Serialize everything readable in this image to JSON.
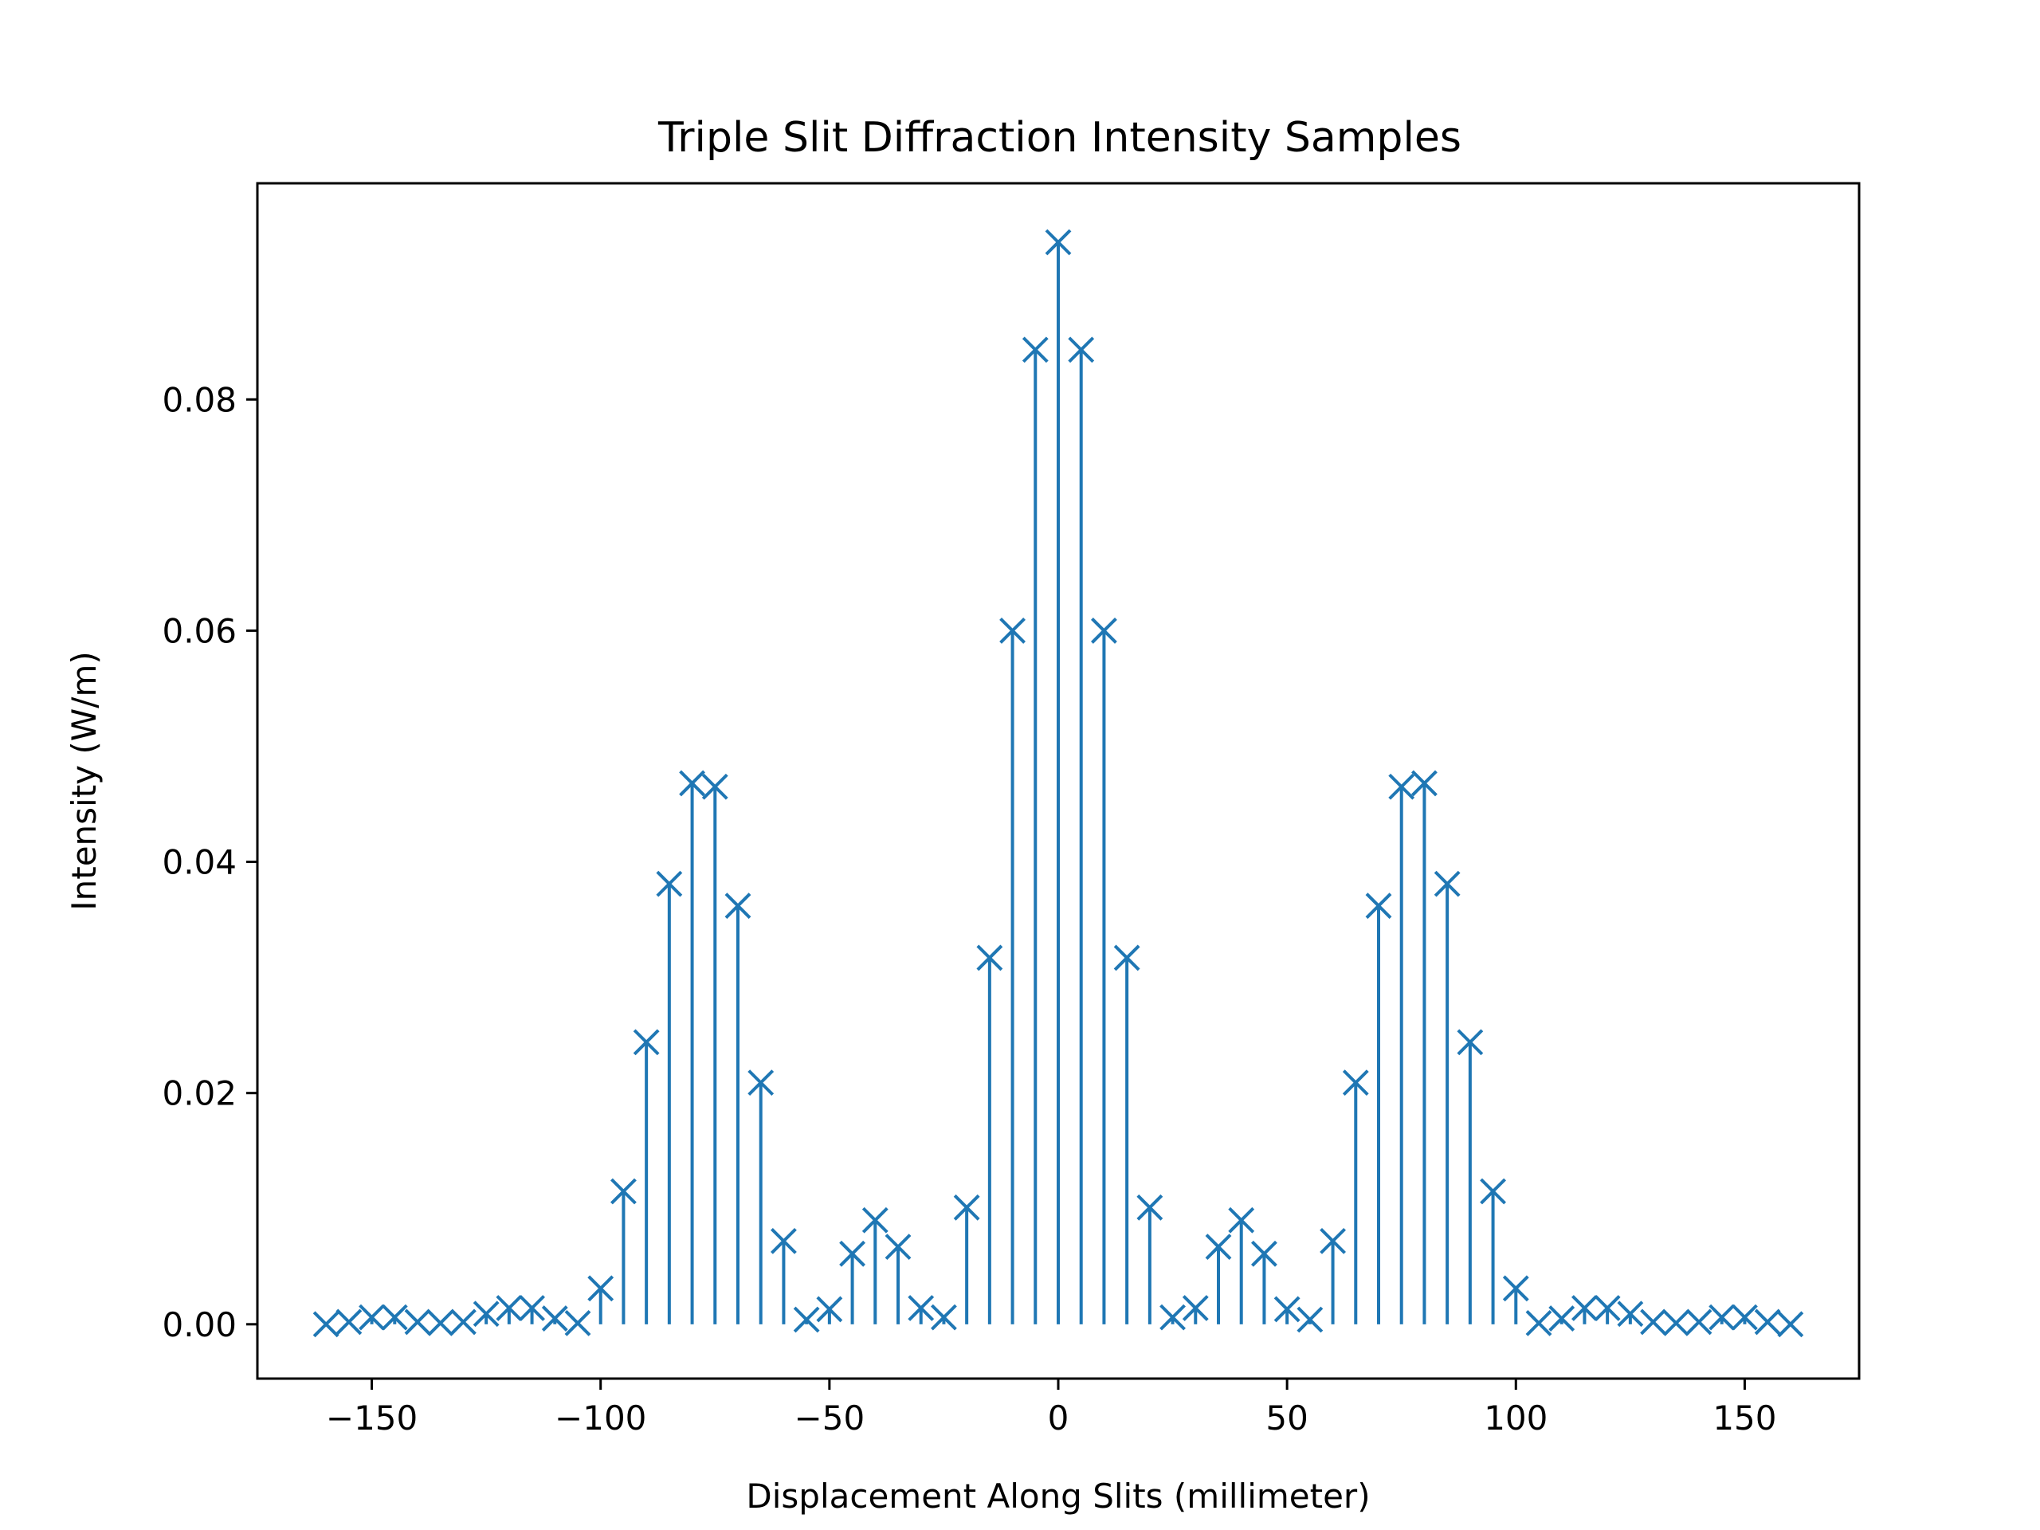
{
  "chart_data": {
    "type": "stem",
    "title": "Triple Slit Diffraction Intensity Samples",
    "xlabel": "Displacement Along Slits (millimeter)",
    "ylabel": "Intensity (W/m)",
    "xlim": [
      -175,
      175
    ],
    "ylim": [
      -0.0047,
      0.0987
    ],
    "x_ticks": [
      -150,
      -100,
      -50,
      0,
      50,
      100,
      150
    ],
    "x_tick_labels": [
      "−150",
      "−100",
      "−50",
      "0",
      "50",
      "100",
      "150"
    ],
    "y_ticks": [
      0.0,
      0.02,
      0.04,
      0.06,
      0.08
    ],
    "y_tick_labels": [
      "0.00",
      "0.02",
      "0.04",
      "0.06",
      "0.08"
    ],
    "marker": "x",
    "color": "#1f77b4",
    "grid": false,
    "series": [
      {
        "x": [
          -160,
          -155,
          -150,
          -145,
          -140,
          -135,
          -130,
          -125,
          -120,
          -115,
          -110,
          -105,
          -100,
          -95,
          -90,
          -85,
          -80,
          -75,
          -70,
          -65,
          -60,
          -55,
          -50,
          -45,
          -40,
          -35,
          -30,
          -25,
          -20,
          -15,
          -10,
          -5,
          0,
          5,
          10,
          15,
          20,
          25,
          30,
          35,
          40,
          45,
          50,
          55,
          60,
          65,
          70,
          75,
          80,
          85,
          90,
          95,
          100,
          105,
          110,
          115,
          120,
          125,
          130,
          135,
          140,
          145,
          150,
          155,
          160
        ],
        "values": [
          0.0,
          0.0002,
          0.0006,
          0.0006,
          0.0002,
          0.0001,
          0.0002,
          0.0009,
          0.0014,
          0.0014,
          0.0005,
          0.0001,
          0.0031,
          0.0115,
          0.0244,
          0.0381,
          0.0468,
          0.0465,
          0.0362,
          0.0209,
          0.0072,
          0.0004,
          0.0013,
          0.0061,
          0.009,
          0.0067,
          0.0014,
          0.0006,
          0.0101,
          0.0317,
          0.06,
          0.0843,
          0.0936,
          0.0843,
          0.06,
          0.0317,
          0.0101,
          0.0006,
          0.0014,
          0.0067,
          0.009,
          0.0061,
          0.0013,
          0.0004,
          0.0072,
          0.0209,
          0.0362,
          0.0465,
          0.0468,
          0.0381,
          0.0244,
          0.0115,
          0.0031,
          0.0001,
          0.0005,
          0.0014,
          0.0014,
          0.0009,
          0.0002,
          0.0001,
          0.0002,
          0.0006,
          0.0006,
          0.0002,
          0.0
        ]
      }
    ]
  }
}
